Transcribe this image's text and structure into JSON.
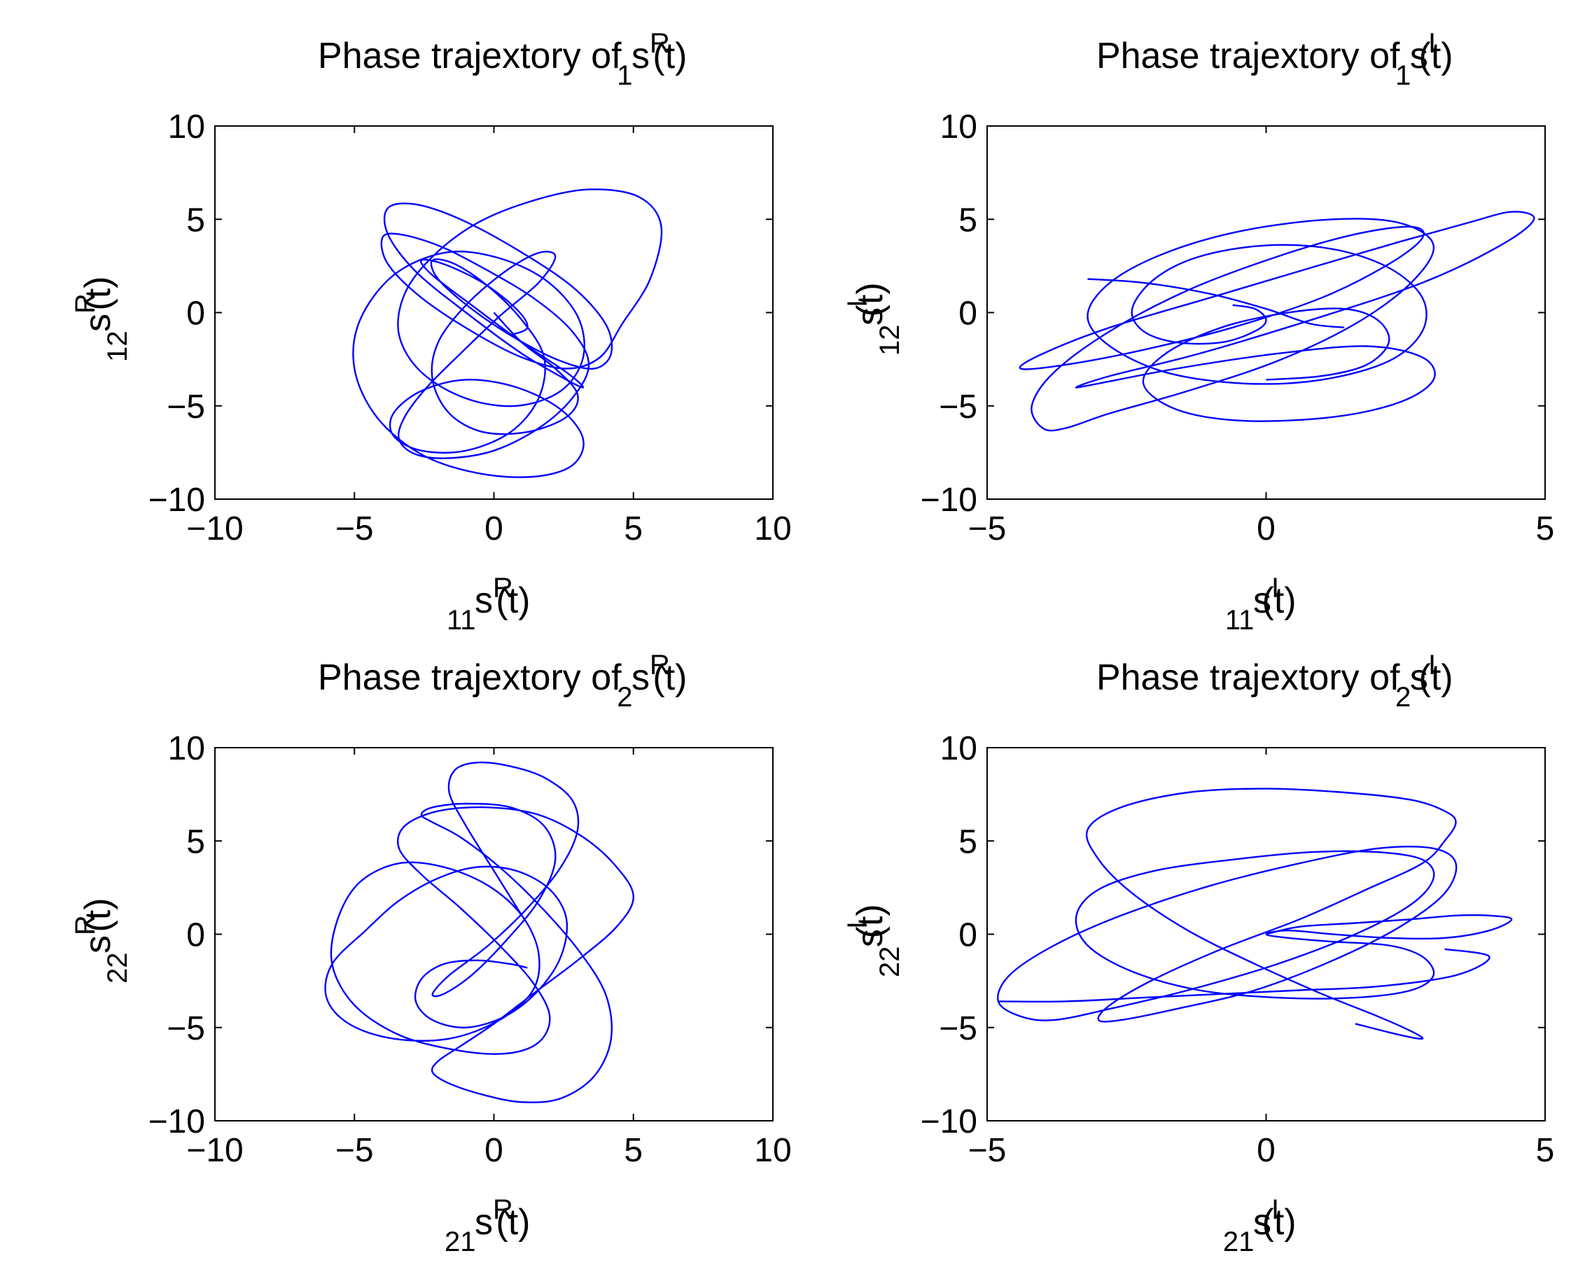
{
  "chart_data": [
    {
      "type": "line",
      "title": {
        "prefix": "Phase trajextory of s",
        "sup": "R",
        "sub": "1",
        "suffix": "(t)"
      },
      "xlabel": {
        "base": "s",
        "sup": "R",
        "sub": "11",
        "suffix": "(t)"
      },
      "ylabel": {
        "base": "s",
        "sup": "R",
        "sub": "12",
        "suffix": "(t)"
      },
      "xlim": [
        -10,
        10
      ],
      "ylim": [
        -10,
        10
      ],
      "xticks": [
        -10,
        -5,
        0,
        5,
        10
      ],
      "yticks": [
        -10,
        -5,
        0,
        5,
        10
      ],
      "xtick_labels": [
        "−10",
        "−5",
        "0",
        "5",
        "10"
      ],
      "ytick_labels": [
        "−10",
        "−5",
        "0",
        "5",
        "10"
      ],
      "grid": false,
      "color": "#0000ff",
      "series": [
        {
          "x": [
            0.0,
            1.0,
            2.2,
            3.0,
            2.6,
            1.2,
            -0.4,
            -1.6,
            -2.2,
            -2.0,
            -1.0,
            0.4,
            1.6,
            2.2,
            1.6,
            0.2,
            -1.2,
            -2.4,
            -3.2,
            -3.4,
            -2.8,
            -1.6,
            0.0,
            1.6,
            2.8,
            3.4,
            2.8,
            1.4,
            -0.4,
            -2.0,
            -3.4,
            -4.0,
            -3.8,
            -2.6,
            -0.8,
            1.0,
            2.6,
            3.8,
            4.6,
            5.6,
            6.0,
            5.2,
            3.4,
            1.4,
            -0.6,
            -2.2,
            -3.2,
            -3.4,
            -2.6,
            -1.0,
            0.8,
            2.4,
            3.2,
            3.0,
            1.8,
            0.0,
            -1.8,
            -3.6,
            -4.8,
            -5.0,
            -4.2,
            -2.6,
            -0.6,
            1.4,
            2.8,
            3.2,
            2.4,
            0.8,
            -1.0,
            -2.6,
            -3.6,
            -3.6,
            -2.6,
            -1.0,
            0.6,
            1.6,
            1.8,
            1.0,
            -0.2,
            -1.4,
            -2.2,
            -2.0,
            -0.8,
            0.8,
            2.4,
            3.6,
            4.2,
            4.0,
            2.8,
            0.8,
            -1.2,
            -2.8,
            -3.8,
            -3.8,
            -2.8,
            -1.0,
            1.0,
            2.6,
            3.2,
            2.6,
            1.0,
            -0.8,
            -2.2,
            -2.6,
            -1.8,
            -0.4,
            0.8,
            1.2,
            0.6
          ],
          "y": [
            0.0,
            -1.6,
            -3.0,
            -4.4,
            -5.6,
            -6.4,
            -6.4,
            -5.4,
            -3.6,
            -1.6,
            0.4,
            2.2,
            3.2,
            3.0,
            1.6,
            -0.2,
            -2.2,
            -4.0,
            -5.6,
            -6.8,
            -7.6,
            -7.8,
            -7.4,
            -6.2,
            -4.6,
            -2.8,
            -1.0,
            0.8,
            2.4,
            3.6,
            4.2,
            4.0,
            2.6,
            0.8,
            -1.0,
            -2.4,
            -3.0,
            -2.4,
            -0.6,
            1.8,
            4.6,
            6.2,
            6.6,
            6.0,
            4.8,
            3.0,
            1.0,
            -1.2,
            -3.2,
            -4.6,
            -5.0,
            -4.2,
            -2.4,
            -0.2,
            1.8,
            3.0,
            3.2,
            2.0,
            -0.4,
            -3.0,
            -5.6,
            -7.6,
            -8.6,
            -8.8,
            -8.2,
            -6.8,
            -5.2,
            -4.0,
            -3.6,
            -4.2,
            -5.4,
            -6.6,
            -7.4,
            -7.4,
            -6.4,
            -4.6,
            -2.4,
            -0.4,
            1.4,
            2.6,
            2.8,
            1.8,
            0.2,
            -1.4,
            -2.6,
            -3.0,
            -2.2,
            -0.6,
            1.4,
            3.4,
            5.0,
            5.8,
            5.6,
            4.2,
            2.2,
            0.0,
            -2.2,
            -3.6,
            -4.0,
            -3.2,
            -1.6,
            0.4,
            2.0,
            2.8,
            2.6,
            1.6,
            0.2,
            -0.8,
            -1.2
          ]
        }
      ]
    },
    {
      "type": "line",
      "title": {
        "prefix": "Phase trajextory of s",
        "sup": "I",
        "sub": "1",
        "suffix": "(t)"
      },
      "xlabel": {
        "base": "s",
        "sup": "I",
        "sub": "11",
        "suffix": "(t)"
      },
      "ylabel": {
        "base": "s",
        "sup": "I",
        "sub": "12",
        "suffix": "(t)"
      },
      "xlim": [
        -5,
        5
      ],
      "ylim": [
        -10,
        10
      ],
      "xticks": [
        -5,
        0,
        5
      ],
      "yticks": [
        -10,
        -5,
        0,
        5,
        10
      ],
      "xtick_labels": [
        "−5",
        "0",
        "5"
      ],
      "ytick_labels": [
        "−10",
        "−5",
        "0",
        "5",
        "10"
      ],
      "grid": false,
      "color": "#0000ff",
      "series": [
        {
          "x": [
            -0.6,
            -0.2,
            0.0,
            -0.2,
            -0.8,
            -1.6,
            -2.2,
            -2.4,
            -2.0,
            -1.2,
            0.0,
            1.2,
            2.2,
            2.8,
            2.8,
            2.2,
            1.0,
            -0.4,
            -1.8,
            -2.8,
            -3.2,
            -2.8,
            -1.8,
            -0.4,
            1.2,
            2.4,
            3.0,
            2.6,
            1.6,
            0.2,
            -1.4,
            -2.8,
            -3.6,
            -4.0,
            -4.2,
            -3.8,
            -2.8,
            -1.4,
            0.2,
            1.6,
            2.6,
            2.8,
            2.2,
            1.0,
            -0.6,
            -2.2,
            -3.6,
            -4.4,
            -4.0,
            -2.8,
            -1.0,
            0.8,
            2.4,
            3.6,
            4.4,
            4.8,
            4.2,
            2.8,
            0.8,
            -1.2,
            -2.8,
            -3.4,
            -3.0,
            -1.6,
            0.2,
            1.8,
            2.8,
            3.0,
            2.4,
            1.2,
            -0.4,
            -1.6,
            -2.2,
            -1.8,
            -0.8,
            0.4,
            1.4,
            2.0,
            2.2,
            1.8,
            1.0,
            0.0
          ],
          "y": [
            0.4,
            0.2,
            -0.4,
            -1.0,
            -1.6,
            -1.6,
            -1.0,
            0.2,
            1.8,
            3.0,
            3.6,
            3.4,
            2.4,
            0.8,
            -1.0,
            -2.6,
            -3.6,
            -3.8,
            -3.2,
            -1.8,
            -0.2,
            1.6,
            3.2,
            4.4,
            5.0,
            4.8,
            3.6,
            1.6,
            -0.6,
            -2.6,
            -4.2,
            -5.4,
            -6.2,
            -6.2,
            -5.0,
            -3.2,
            -1.0,
            1.2,
            3.0,
            4.2,
            4.6,
            4.0,
            2.6,
            0.8,
            -0.8,
            -2.0,
            -2.8,
            -3.0,
            -2.2,
            -0.8,
            0.8,
            2.4,
            3.8,
            4.8,
            5.4,
            5.0,
            3.6,
            1.6,
            -0.4,
            -2.2,
            -3.4,
            -4.0,
            -3.8,
            -3.0,
            -2.2,
            -1.8,
            -2.4,
            -3.6,
            -4.8,
            -5.6,
            -5.8,
            -5.2,
            -3.8,
            -2.2,
            -0.8,
            0.0,
            0.2,
            -0.4,
            -1.6,
            -2.8,
            -3.4,
            -3.6
          ]
        },
        {
          "x": [
            -3.2,
            -2.2,
            -1.0,
            0.0,
            0.8,
            1.4
          ],
          "y": [
            1.8,
            1.6,
            1.0,
            0.2,
            -0.6,
            -0.8
          ]
        }
      ]
    },
    {
      "type": "line",
      "title": {
        "prefix": "Phase trajextory of s",
        "sup": "R",
        "sub": "2",
        "suffix": "(t)"
      },
      "xlabel": {
        "base": "s",
        "sup": "R",
        "sub": "21",
        "suffix": "(t)"
      },
      "ylabel": {
        "base": "s",
        "sup": "R",
        "sub": "22",
        "suffix": "(t)"
      },
      "xlim": [
        -10,
        10
      ],
      "ylim": [
        -10,
        10
      ],
      "xticks": [
        -10,
        -5,
        0,
        5,
        10
      ],
      "yticks": [
        -10,
        -5,
        0,
        5,
        10
      ],
      "xtick_labels": [
        "−10",
        "−5",
        "0",
        "5",
        "10"
      ],
      "ytick_labels": [
        "−10",
        "−5",
        "0",
        "5",
        "10"
      ],
      "grid": false,
      "color": "#0000ff",
      "series": [
        {
          "x": [
            1.2,
            0.6,
            -0.6,
            -1.8,
            -2.6,
            -2.8,
            -2.2,
            -1.0,
            0.4,
            1.6,
            2.4,
            2.6,
            2.0,
            0.8,
            -0.6,
            -2.0,
            -3.4,
            -4.6,
            -5.8,
            -6.0,
            -5.2,
            -3.6,
            -1.6,
            0.2,
            1.4,
            1.6,
            1.0,
            -0.2,
            -1.8,
            -3.4,
            -4.8,
            -5.6,
            -5.8,
            -5.0,
            -3.4,
            -1.4,
            0.4,
            1.6,
            2.0,
            1.4,
            0.2,
            -1.2,
            -2.6,
            -3.4,
            -3.2,
            -2.0,
            -0.2,
            1.6,
            3.2,
            4.4,
            5.0,
            4.4,
            3.0,
            1.4,
            0.0,
            -1.2,
            -2.0,
            -2.2,
            -1.6,
            -0.4,
            1.0,
            2.4,
            3.6,
            4.2,
            4.0,
            3.0,
            1.6,
            0.2,
            -1.2,
            -2.2,
            -2.6,
            -2.2,
            -1.0,
            0.6,
            1.8,
            2.2,
            1.6,
            0.4,
            -0.8,
            -1.8,
            -2.2,
            -1.6,
            -0.2,
            1.2,
            2.4,
            3.0,
            2.8,
            1.8,
            0.6,
            -0.6,
            -1.4,
            -1.6,
            -1.0,
            0.0,
            1.0
          ],
          "y": [
            -1.8,
            -1.6,
            -1.4,
            -1.6,
            -2.4,
            -3.6,
            -4.6,
            -5.0,
            -4.4,
            -3.0,
            -1.2,
            0.8,
            2.4,
            3.4,
            3.6,
            3.0,
            1.8,
            0.2,
            -1.6,
            -3.4,
            -4.8,
            -5.6,
            -5.6,
            -4.6,
            -3.0,
            -1.0,
            1.0,
            2.6,
            3.6,
            3.8,
            2.8,
            0.8,
            -1.6,
            -3.8,
            -5.4,
            -6.2,
            -6.4,
            -5.8,
            -4.4,
            -2.6,
            -0.6,
            1.4,
            3.2,
            4.6,
            5.8,
            6.6,
            6.8,
            6.4,
            5.2,
            3.6,
            2.0,
            0.4,
            -1.4,
            -3.2,
            -4.8,
            -6.0,
            -6.8,
            -7.4,
            -8.0,
            -8.6,
            -9.0,
            -8.8,
            -7.6,
            -5.6,
            -3.2,
            -0.8,
            1.6,
            3.6,
            5.2,
            6.0,
            6.4,
            6.8,
            7.0,
            6.8,
            5.8,
            4.0,
            1.8,
            -0.4,
            -2.2,
            -3.2,
            -3.2,
            -2.2,
            -0.6,
            1.4,
            3.6,
            5.6,
            7.2,
            8.4,
            9.0,
            9.2,
            8.8,
            7.6,
            5.8,
            3.4,
            1.0
          ]
        }
      ]
    },
    {
      "type": "line",
      "title": {
        "prefix": "Phase trajextory of s",
        "sup": "I",
        "sub": "2",
        "suffix": "(t)"
      },
      "xlabel": {
        "base": "s",
        "sup": "I",
        "sub": "21",
        "suffix": "(t)"
      },
      "ylabel": {
        "base": "s",
        "sup": "I",
        "sub": "22",
        "suffix": "(t)"
      },
      "xlim": [
        -5,
        5
      ],
      "ylim": [
        -10,
        10
      ],
      "xticks": [
        -5,
        0,
        5
      ],
      "yticks": [
        -10,
        -5,
        0,
        5,
        10
      ],
      "xtick_labels": [
        "−5",
        "0",
        "5"
      ],
      "ytick_labels": [
        "−10",
        "−5",
        "0",
        "5",
        "10"
      ],
      "grid": false,
      "color": "#0000ff",
      "series": [
        {
          "x": [
            0.0,
            0.6,
            1.6,
            2.6,
            3.4,
            4.0,
            4.4,
            4.0,
            3.2,
            2.2,
            1.2,
            0.4,
            0.0,
            0.4,
            1.2,
            2.2,
            2.8,
            3.0,
            2.6,
            1.6,
            0.2,
            -1.2,
            -2.4,
            -3.2,
            -3.4,
            -3.0,
            -2.0,
            -0.6,
            0.8,
            2.0,
            2.8,
            3.0,
            2.6,
            1.6,
            0.2,
            -1.4,
            -2.8,
            -3.8,
            -4.4,
            -4.8,
            -4.6,
            -3.8,
            -2.6,
            -1.0,
            0.6,
            2.0,
            3.0,
            3.4,
            3.2,
            2.4,
            1.2,
            -0.2,
            -1.6,
            -2.6,
            -3.0,
            -2.8,
            -2.0,
            -0.8,
            0.6,
            1.8,
            2.8,
            3.2,
            3.4,
            3.2,
            2.6,
            1.4,
            0.0,
            -1.4,
            -2.6,
            -3.2,
            -3.0,
            -2.4,
            -1.4,
            -0.2,
            1.0,
            2.0,
            2.6,
            2.8,
            2.4,
            1.6
          ],
          "y": [
            0.0,
            0.4,
            0.6,
            0.8,
            1.0,
            1.0,
            0.8,
            0.2,
            -0.2,
            -0.2,
            0.0,
            0.2,
            0.0,
            -0.2,
            -0.4,
            -0.6,
            -1.2,
            -2.2,
            -3.0,
            -3.4,
            -3.4,
            -3.0,
            -2.0,
            -0.6,
            1.0,
            2.4,
            3.4,
            4.0,
            4.4,
            4.4,
            4.0,
            3.0,
            1.6,
            0.0,
            -1.6,
            -3.0,
            -4.0,
            -4.6,
            -4.4,
            -3.6,
            -2.2,
            -0.6,
            1.0,
            2.6,
            3.8,
            4.6,
            4.6,
            3.8,
            2.2,
            0.4,
            -1.4,
            -3.0,
            -4.0,
            -4.6,
            -4.6,
            -3.8,
            -2.4,
            -0.8,
            0.8,
            2.4,
            3.8,
            5.0,
            6.0,
            6.6,
            7.2,
            7.6,
            7.8,
            7.6,
            6.8,
            5.6,
            4.0,
            2.2,
            0.2,
            -1.6,
            -3.2,
            -4.4,
            -5.2,
            -5.6,
            -5.4,
            -4.8
          ]
        },
        {
          "x": [
            -4.8,
            -3.6,
            -2.2,
            -0.8,
            0.6,
            2.0,
            3.4,
            4.0,
            3.2
          ],
          "y": [
            -3.6,
            -3.6,
            -3.4,
            -3.2,
            -3.0,
            -2.8,
            -2.2,
            -1.2,
            -0.8
          ]
        }
      ]
    }
  ]
}
